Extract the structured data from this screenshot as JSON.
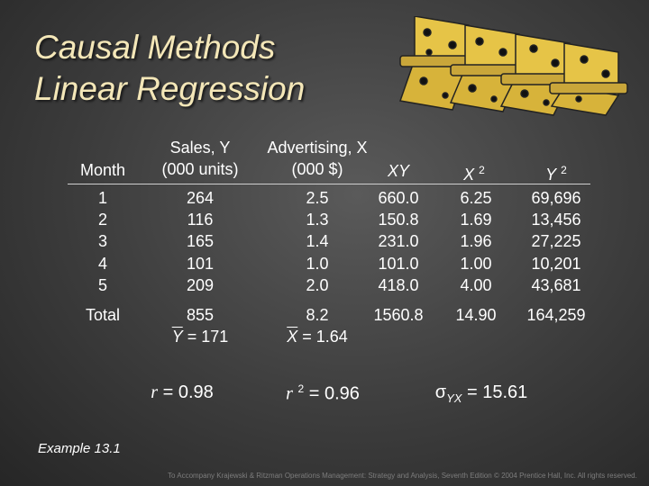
{
  "title": {
    "line1": "Causal Methods",
    "line2": "Linear Regression"
  },
  "headers": {
    "month": "Month",
    "sales_line1": "Sales, Y",
    "sales_line2": "(000 units)",
    "adv_line1": "Advertising, X",
    "adv_line2": "(000 $)",
    "xy": "XY",
    "x2_base": "X",
    "x2_exp": "2",
    "y2_base": "Y",
    "y2_exp": "2"
  },
  "columns": {
    "month": [
      "1",
      "2",
      "3",
      "4",
      "5"
    ],
    "sales": [
      "264",
      "116",
      "165",
      "101",
      "209"
    ],
    "advertising": [
      "2.5",
      "1.3",
      "1.4",
      "1.0",
      "2.0"
    ],
    "xy": [
      "660.0",
      "150.8",
      "231.0",
      "101.0",
      "418.0"
    ],
    "x2": [
      "6.25",
      "1.69",
      "1.96",
      "1.00",
      "4.00"
    ],
    "y2": [
      "69,696",
      "13,456",
      "27,225",
      "10,201",
      "43,681"
    ]
  },
  "totals": {
    "label": "Total",
    "sales": "855",
    "advertising": "8.2",
    "xy": "1560.8",
    "x2": "14.90",
    "y2": "164,259"
  },
  "means": {
    "y_symbol": "Y",
    "y_value": "= 171",
    "x_symbol": "X",
    "x_value": "= 1.64"
  },
  "stats": {
    "r_symbol": "r",
    "r_value": "= 0.98",
    "r2_symbol": "r",
    "r2_exp": "2",
    "r2_value": "= 0.96",
    "sigma_symbol": "σ",
    "sigma_sub": "YX",
    "sigma_value": "= 15.61"
  },
  "example": "Example 13.1",
  "footer": "To Accompany Krajewski & Ritzman Operations Management: Strategy and Analysis, Seventh Edition © 2004 Prentice Hall, Inc. All rights reserved."
}
